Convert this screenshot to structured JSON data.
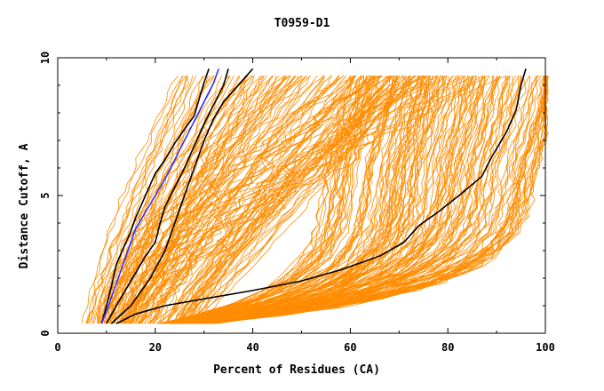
{
  "chart_data": {
    "type": "line",
    "title": "T0959-D1",
    "xlabel": "Percent of Residues (CA)",
    "ylabel": "Distance Cutoff, A",
    "xlim": [
      0,
      100
    ],
    "ylim": [
      0,
      10
    ],
    "xticks": [
      0,
      20,
      40,
      60,
      80,
      100
    ],
    "yticks": [
      0,
      5,
      10
    ],
    "grid": false,
    "series": [
      {
        "color": "#000000",
        "x": [
          12,
          16,
          22,
          30,
          40,
          50,
          58,
          66,
          71,
          74,
          78,
          83,
          87,
          89,
          92,
          94,
          95,
          96
        ],
        "y": [
          0.35,
          0.7,
          1.0,
          1.25,
          1.55,
          1.9,
          2.3,
          2.8,
          3.3,
          3.9,
          4.4,
          5.1,
          5.7,
          6.4,
          7.3,
          8.1,
          9.0,
          9.6
        ]
      },
      {
        "color": "#000000",
        "x": [
          9,
          10,
          11,
          12,
          13,
          14,
          15,
          16,
          17,
          18,
          19,
          20,
          22,
          24,
          26,
          28,
          29,
          30,
          31
        ],
        "y": [
          0.35,
          1.0,
          1.7,
          2.5,
          2.9,
          3.3,
          3.7,
          4.2,
          4.6,
          5.0,
          5.4,
          5.8,
          6.3,
          6.9,
          7.4,
          7.9,
          8.5,
          9.1,
          9.6
        ]
      },
      {
        "color": "#000000",
        "x": [
          10,
          12,
          14,
          16,
          18,
          20,
          21,
          22,
          24,
          26,
          28,
          30,
          32,
          34,
          35
        ],
        "y": [
          0.35,
          1.0,
          1.6,
          2.2,
          2.8,
          3.3,
          4.0,
          4.6,
          5.3,
          6.0,
          6.8,
          7.6,
          8.3,
          9.0,
          9.6
        ]
      },
      {
        "color": "#000000",
        "x": [
          11,
          15,
          19,
          22,
          24,
          26,
          28,
          30,
          32,
          34,
          36,
          38,
          40
        ],
        "y": [
          0.35,
          1.0,
          2.0,
          3.0,
          4.0,
          5.0,
          6.0,
          7.0,
          7.8,
          8.4,
          8.8,
          9.2,
          9.6
        ]
      },
      {
        "color": "#3333ff",
        "x": [
          9,
          10,
          11,
          12,
          13,
          14,
          15,
          16,
          18,
          20,
          22,
          24,
          26,
          28,
          30,
          32,
          33
        ],
        "y": [
          0.35,
          0.8,
          1.3,
          1.8,
          2.3,
          2.8,
          3.3,
          3.8,
          4.4,
          5.0,
          5.6,
          6.3,
          7.0,
          7.7,
          8.4,
          9.1,
          9.6
        ]
      }
    ],
    "band_color": "#ff8c00"
  }
}
